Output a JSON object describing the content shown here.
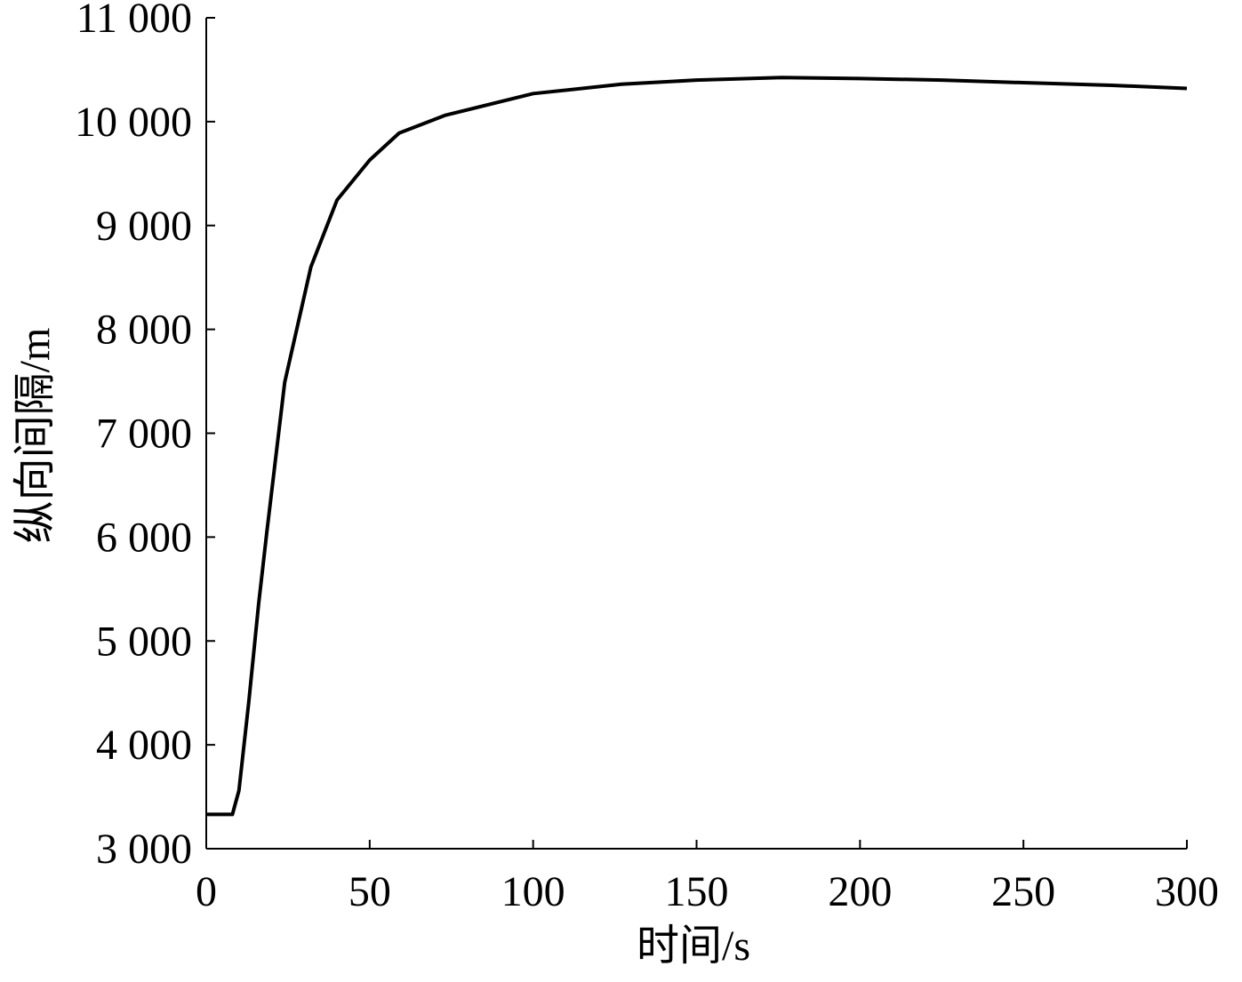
{
  "chart_data": {
    "type": "line",
    "x_label": "时间/s",
    "y_label": "纵向间隔/m",
    "xlim": [
      0,
      300
    ],
    "xticks": [
      0,
      50,
      100,
      150,
      200,
      250,
      300
    ],
    "ylim": [
      3000,
      11000
    ],
    "yticks": [
      {
        "value": 3000,
        "label": "3 000"
      },
      {
        "value": 4000,
        "label": "4 000"
      },
      {
        "value": 5000,
        "label": "5 000"
      },
      {
        "value": 6000,
        "label": "6 000"
      },
      {
        "value": 7000,
        "label": "7 000"
      },
      {
        "value": 8000,
        "label": "8 000"
      },
      {
        "value": 9000,
        "label": "9 000"
      },
      {
        "value": 10000,
        "label": "10 000"
      },
      {
        "value": 11000,
        "label": "11 000"
      }
    ],
    "x": [
      0,
      8,
      10,
      13,
      16,
      18.5,
      24,
      32,
      40,
      50,
      59,
      73,
      100,
      127,
      150,
      176,
      200,
      225,
      250,
      277,
      300
    ],
    "series": [
      {
        "color": "#000000",
        "values": [
          3330,
          3330,
          3560,
          4410,
          5350,
          6040,
          7490,
          8600,
          9245,
          9630,
          9890,
          10060,
          10270,
          10360,
          10400,
          10425,
          10415,
          10400,
          10375,
          10350,
          10320
        ]
      }
    ]
  }
}
